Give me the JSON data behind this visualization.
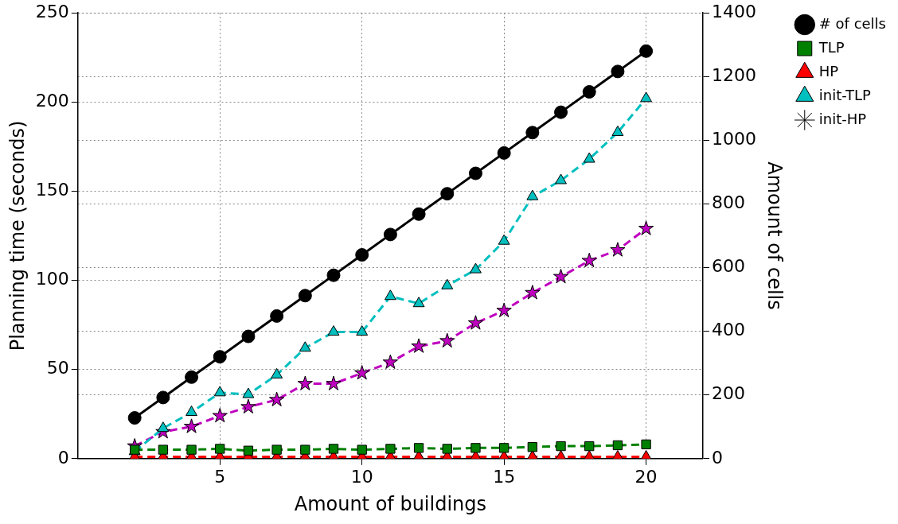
{
  "chart_data": {
    "type": "line",
    "xlabel": "Amount of buildings",
    "ylabel": "Planning time (seconds)",
    "y2label": "Amount of cells",
    "xlim": [
      0,
      22
    ],
    "xticks": [
      5,
      10,
      15,
      20
    ],
    "ylim": [
      0,
      250
    ],
    "yticks": [
      0,
      50,
      100,
      150,
      200,
      250
    ],
    "y2lim": [
      0,
      1400
    ],
    "y2ticks": [
      0,
      200,
      400,
      600,
      800,
      1000,
      1200,
      1400
    ],
    "grid": true,
    "legend": "top right",
    "x": [
      2,
      3,
      4,
      5,
      6,
      7,
      8,
      9,
      10,
      11,
      12,
      13,
      14,
      15,
      16,
      17,
      18,
      19,
      20
    ],
    "series": [
      {
        "name": "# of cells",
        "color": "#000000",
        "axis": "y2",
        "marker": "circle",
        "line_style": "solid",
        "values": [
          128,
          192,
          256,
          320,
          384,
          448,
          512,
          576,
          640,
          704,
          768,
          832,
          896,
          960,
          1024,
          1088,
          1152,
          1216,
          1280
        ]
      },
      {
        "name": "TLP",
        "color": "#008000",
        "marker": "square",
        "line_style": "dashed",
        "values": [
          5,
          5,
          5,
          5.5,
          4.5,
          5,
          5,
          5.5,
          5,
          5.5,
          6,
          5.5,
          6,
          6,
          6.5,
          7,
          7,
          7.5,
          8
        ]
      },
      {
        "name": "HP",
        "color": "#ff0000",
        "marker": "triangle",
        "line_style": "dashed",
        "values": [
          1,
          1,
          1,
          1,
          1,
          1,
          1,
          1,
          1,
          1,
          1,
          1,
          1,
          1,
          1,
          1,
          1,
          1,
          1
        ]
      },
      {
        "name": "init-TLP",
        "color": "#00bfbf",
        "marker": "triangle",
        "line_style": "dashed",
        "values": [
          4,
          17,
          26,
          37,
          36,
          47,
          62,
          71,
          71,
          91,
          87,
          97,
          106,
          122,
          147,
          156,
          168,
          183,
          202
        ]
      },
      {
        "name": "init-HP",
        "color": "#bf00bf",
        "marker": "star",
        "line_style": "dashed",
        "values": [
          7,
          15,
          18,
          24,
          29,
          33,
          42,
          42,
          48,
          54,
          63,
          66,
          76,
          83,
          93,
          102,
          111,
          117,
          129
        ]
      }
    ]
  }
}
